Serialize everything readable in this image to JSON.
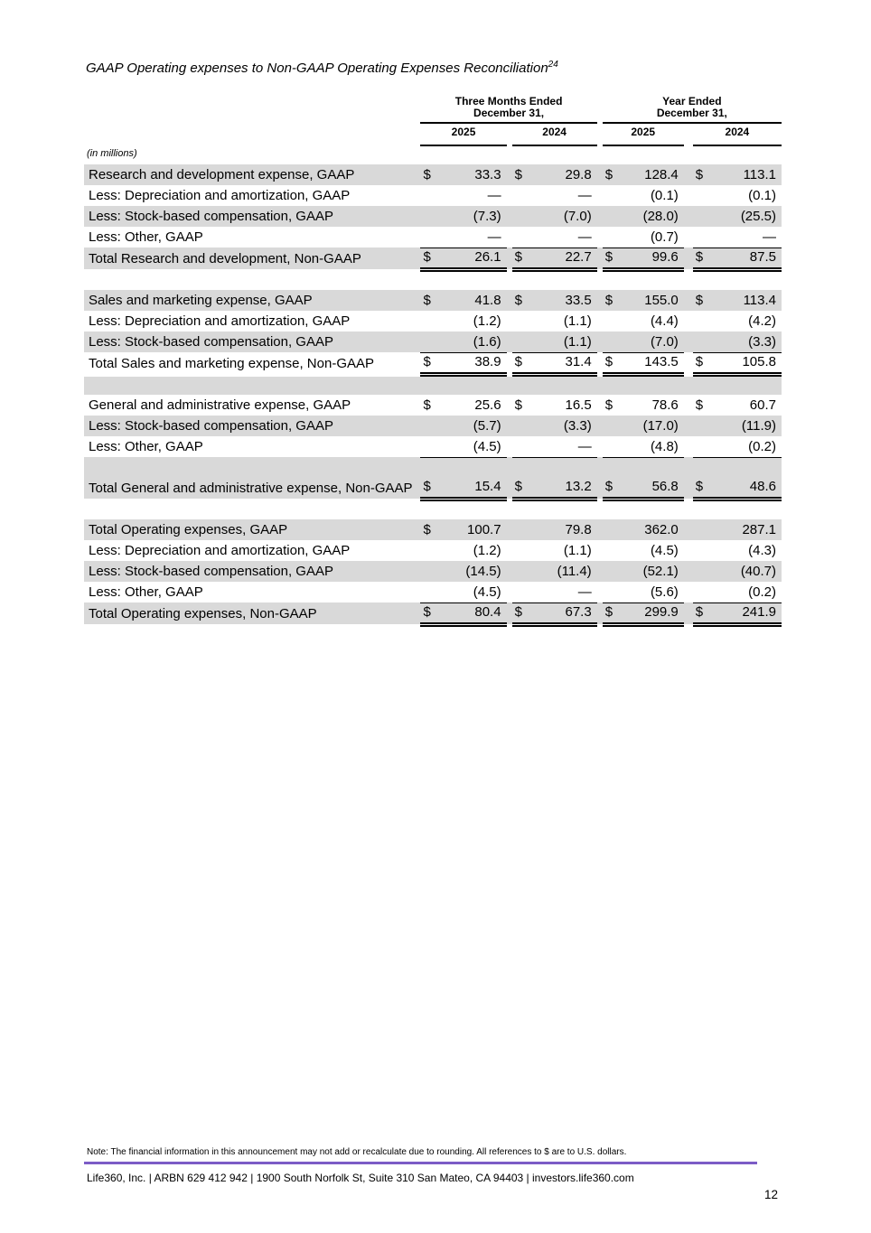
{
  "page": {
    "title": "GAAP Operating expenses to Non-GAAP Operating Expenses Reconciliation",
    "title_superscript": "24",
    "page_number": "12"
  },
  "table": {
    "units_label": "(in millions)",
    "dollar_sign": "$",
    "groups": [
      {
        "line1": "Three Months Ended",
        "line2": "December 31,",
        "years": [
          "2025",
          "2024"
        ]
      },
      {
        "line1": "Year Ended",
        "line2": "December 31,",
        "years": [
          "2025",
          "2024"
        ]
      }
    ],
    "rows": [
      {
        "type": "item",
        "shaded": true,
        "label": "Research and development expense, GAAP",
        "dollars": [
          1,
          1,
          1,
          1
        ],
        "values": [
          "33.3",
          "29.8",
          "128.4",
          "113.1"
        ]
      },
      {
        "type": "item",
        "shaded": false,
        "label": "Less: Depreciation and amortization, GAAP",
        "dollars": [
          0,
          0,
          0,
          0
        ],
        "values": [
          "—",
          "—",
          "(0.1)",
          "(0.1)"
        ]
      },
      {
        "type": "item",
        "shaded": true,
        "label": "Less: Stock-based compensation, GAAP",
        "dollars": [
          0,
          0,
          0,
          0
        ],
        "values": [
          "(7.3)",
          "(7.0)",
          "(28.0)",
          "(25.5)"
        ]
      },
      {
        "type": "item",
        "shaded": false,
        "rule": true,
        "label": "Less: Other, GAAP",
        "dollars": [
          0,
          0,
          0,
          0
        ],
        "values": [
          "—",
          "—",
          "(0.7)",
          "—"
        ]
      },
      {
        "type": "total",
        "shaded": true,
        "label": "Total Research and development, Non-GAAP",
        "dollars": [
          1,
          1,
          1,
          1
        ],
        "values": [
          "26.1",
          "22.7",
          "99.6",
          "87.5"
        ]
      },
      {
        "type": "spacer",
        "shaded": false
      },
      {
        "type": "item",
        "shaded": true,
        "label": "Sales and marketing expense, GAAP",
        "dollars": [
          1,
          1,
          1,
          1
        ],
        "values": [
          "41.8",
          "33.5",
          "155.0",
          "113.4"
        ]
      },
      {
        "type": "item",
        "shaded": false,
        "label": "Less: Depreciation and amortization, GAAP",
        "dollars": [
          0,
          0,
          0,
          0
        ],
        "values": [
          "(1.2)",
          "(1.1)",
          "(4.4)",
          "(4.2)"
        ]
      },
      {
        "type": "item",
        "shaded": true,
        "rule": true,
        "label": "Less: Stock-based compensation, GAAP",
        "dollars": [
          0,
          0,
          0,
          0
        ],
        "values": [
          "(1.6)",
          "(1.1)",
          "(7.0)",
          "(3.3)"
        ]
      },
      {
        "type": "total",
        "shaded": false,
        "label": "Total Sales and marketing expense, Non-GAAP",
        "dollars": [
          1,
          1,
          1,
          1
        ],
        "values": [
          "38.9",
          "31.4",
          "143.5",
          "105.8"
        ]
      },
      {
        "type": "spacer",
        "shaded": true
      },
      {
        "type": "item",
        "shaded": false,
        "label": "General and administrative expense, GAAP",
        "dollars": [
          1,
          1,
          1,
          1
        ],
        "values": [
          "25.6",
          "16.5",
          "78.6",
          "60.7"
        ]
      },
      {
        "type": "item",
        "shaded": true,
        "label": "Less: Stock-based compensation, GAAP",
        "dollars": [
          0,
          0,
          0,
          0
        ],
        "values": [
          "(5.7)",
          "(3.3)",
          "(17.0)",
          "(11.9)"
        ]
      },
      {
        "type": "item",
        "shaded": false,
        "rule": true,
        "label": "Less: Other, GAAP",
        "dollars": [
          0,
          0,
          0,
          0
        ],
        "values": [
          "(4.5)",
          "—",
          "(4.8)",
          "(0.2)"
        ]
      },
      {
        "type": "total",
        "shaded": true,
        "two_line": true,
        "label": "Total General and administrative expense, Non-GAAP",
        "dollars": [
          1,
          1,
          1,
          1
        ],
        "values": [
          "15.4",
          "13.2",
          "56.8",
          "48.6"
        ]
      },
      {
        "type": "spacer",
        "shaded": false
      },
      {
        "type": "item",
        "shaded": true,
        "label": "Total Operating expenses, GAAP",
        "dollars": [
          1,
          0,
          0,
          0
        ],
        "values": [
          "100.7",
          "79.8",
          "362.0",
          "287.1"
        ]
      },
      {
        "type": "item",
        "shaded": false,
        "label": "Less: Depreciation and amortization, GAAP",
        "dollars": [
          0,
          0,
          0,
          0
        ],
        "values": [
          "(1.2)",
          "(1.1)",
          "(4.5)",
          "(4.3)"
        ]
      },
      {
        "type": "item",
        "shaded": true,
        "label": "Less: Stock-based compensation, GAAP",
        "dollars": [
          0,
          0,
          0,
          0
        ],
        "values": [
          "(14.5)",
          "(11.4)",
          "(52.1)",
          "(40.7)"
        ]
      },
      {
        "type": "item",
        "shaded": false,
        "rule": true,
        "label": "Less: Other, GAAP",
        "dollars": [
          0,
          0,
          0,
          0
        ],
        "values": [
          "(4.5)",
          "—",
          "(5.6)",
          "(0.2)"
        ]
      },
      {
        "type": "total",
        "shaded": true,
        "label": "Total Operating expenses, Non-GAAP",
        "dollars": [
          1,
          1,
          1,
          1
        ],
        "values": [
          "80.4",
          "67.3",
          "299.9",
          "241.9"
        ]
      }
    ]
  },
  "footer": {
    "note": "Note: The financial information in this announcement may not add or recalculate due to rounding. All references to $ are to U.S. dollars.",
    "company_line": "Life360, Inc.  |  ARBN 629 412 942  |  1900 South Norfolk St, Suite 310 San Mateo, CA 94403  |  investors.life360.com",
    "rule_color": "#7c5cc6"
  }
}
